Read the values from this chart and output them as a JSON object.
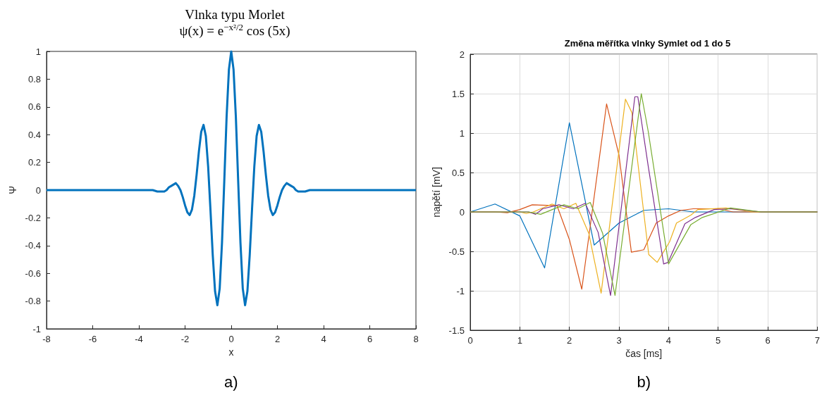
{
  "chart_data": [
    {
      "type": "line",
      "title": "Vlnka typu Morlet",
      "subtitle": "ψ(x) = e$^{−x²/2}$ cos (5x)",
      "xlabel": "x",
      "ylabel": "Ψ",
      "color": "#0072bd",
      "marker": "none",
      "grid": false,
      "x": [
        -8,
        -4,
        -3.4,
        -3.2,
        -3,
        -2.9,
        -2.8,
        -2.7,
        -2.6,
        -2.5,
        -2.4,
        -2.3,
        -2.2,
        -2.1,
        -2,
        -1.9,
        -1.8,
        -1.7,
        -1.6,
        -1.5,
        -1.4,
        -1.3,
        -1.2,
        -1.1,
        -1,
        -0.9,
        -0.8,
        -0.7,
        -0.6,
        -0.5,
        -0.4,
        -0.3,
        -0.2,
        -0.1,
        0,
        0.1,
        0.2,
        0.3,
        0.4,
        0.5,
        0.6,
        0.7,
        0.8,
        0.9,
        1,
        1.1,
        1.2,
        1.3,
        1.4,
        1.5,
        1.6,
        1.7,
        1.8,
        1.9,
        2,
        2.1,
        2.2,
        2.3,
        2.4,
        2.5,
        2.6,
        2.7,
        2.8,
        2.9,
        3,
        3.2,
        3.4,
        4,
        8
      ],
      "values": [
        0,
        0,
        0,
        -0.01,
        -0.01,
        -0.01,
        0,
        0.02,
        0.03,
        0.04,
        0.05,
        0.03,
        0,
        -0.05,
        -0.11,
        -0.16,
        -0.18,
        -0.14,
        -0.04,
        0.11,
        0.28,
        0.42,
        0.47,
        0.39,
        0.17,
        -0.14,
        -0.47,
        -0.73,
        -0.83,
        -0.71,
        -0.38,
        0.07,
        0.53,
        0.87,
        1,
        0.87,
        0.53,
        0.07,
        -0.38,
        -0.71,
        -0.83,
        -0.73,
        -0.47,
        -0.14,
        0.17,
        0.39,
        0.47,
        0.42,
        0.28,
        0.11,
        -0.04,
        -0.14,
        -0.18,
        -0.16,
        -0.11,
        -0.05,
        0,
        0.03,
        0.05,
        0.04,
        0.03,
        0.02,
        0,
        -0.01,
        -0.01,
        -0.01,
        0,
        0,
        0
      ],
      "xlim": [
        -8,
        8
      ],
      "xticks": [
        -8,
        -6,
        -4,
        -2,
        0,
        2,
        4,
        6,
        8
      ],
      "ylim": [
        -1,
        1
      ],
      "yticks": [
        -1,
        -0.8,
        -0.6,
        -0.4,
        -0.2,
        0,
        0.2,
        0.4,
        0.6,
        0.8,
        1
      ],
      "annotations": [
        "a)"
      ]
    },
    {
      "type": "line",
      "title": "Změna měřítka vlnky Symlet od 1 do 5",
      "xlabel": "čas [ms]",
      "ylabel": "napětí [mV]",
      "marker": "none",
      "grid": true,
      "series": [
        {
          "color": "#0072bd",
          "x": [
            0,
            0.5,
            1,
            1.5,
            2,
            2.5,
            3,
            3.5,
            4,
            4.5,
            5,
            6,
            7
          ],
          "values": [
            0,
            0.1,
            -0.05,
            -0.71,
            1.13,
            -0.42,
            -0.14,
            0.02,
            0.04,
            0,
            0,
            0,
            0
          ]
        },
        {
          "color": "#d95319",
          "x": [
            0,
            0.5,
            0.75,
            1,
            1.25,
            1.75,
            2,
            2.25,
            2.75,
            3,
            3.25,
            3.5,
            3.75,
            4,
            4.25,
            4.5,
            5,
            5.3,
            6,
            7
          ],
          "values": [
            0,
            0,
            -0.01,
            0.03,
            0.09,
            0.08,
            -0.35,
            -0.98,
            1.37,
            0.72,
            -0.51,
            -0.48,
            -0.14,
            -0.05,
            0.02,
            0.04,
            0.04,
            0,
            0,
            0
          ]
        },
        {
          "color": "#edb120",
          "x": [
            0,
            1,
            1.13,
            1.27,
            1.65,
            1.89,
            2.13,
            2.39,
            2.64,
            3.13,
            3.26,
            3.6,
            3.77,
            4.02,
            4.16,
            4.45,
            4.59,
            5.16,
            5.68,
            7
          ],
          "values": [
            0,
            0,
            -0.02,
            0,
            0.1,
            0.04,
            0.11,
            -0.27,
            -1.03,
            1.43,
            1.26,
            -0.54,
            -0.64,
            -0.38,
            -0.14,
            -0.04,
            0.03,
            0.05,
            0,
            0
          ]
        },
        {
          "color": "#7e2f8e",
          "x": [
            0,
            1.18,
            1.32,
            1.46,
            1.79,
            2.08,
            2.32,
            2.58,
            2.83,
            3.32,
            3.38,
            3.59,
            3.9,
            3.99,
            4.33,
            4.54,
            4.92,
            5.25,
            5.87,
            7
          ],
          "values": [
            0,
            0,
            -0.03,
            0.04,
            0.09,
            0.04,
            0.11,
            -0.26,
            -1.06,
            1.46,
            1.46,
            0.58,
            -0.66,
            -0.64,
            -0.15,
            -0.07,
            0.03,
            0.04,
            0,
            0
          ]
        },
        {
          "color": "#77ac30",
          "x": [
            0,
            1.18,
            1.42,
            1.89,
            2.17,
            2.42,
            2.67,
            2.92,
            3.45,
            3.59,
            4,
            4.45,
            4.68,
            5.25,
            5.87,
            7
          ],
          "values": [
            0,
            0,
            -0.03,
            0.09,
            0.04,
            0.12,
            -0.27,
            -1.06,
            1.5,
            1.02,
            -0.66,
            -0.16,
            -0.07,
            0.05,
            0,
            0
          ]
        }
      ],
      "xlim": [
        0,
        7
      ],
      "xticks": [
        0,
        1,
        2,
        3,
        4,
        5,
        6,
        7
      ],
      "ylim": [
        -1.5,
        2
      ],
      "yticks": [
        -1.5,
        -1,
        -0.5,
        0,
        0.5,
        1,
        1.5,
        2
      ],
      "annotations": [
        "b)"
      ]
    }
  ]
}
